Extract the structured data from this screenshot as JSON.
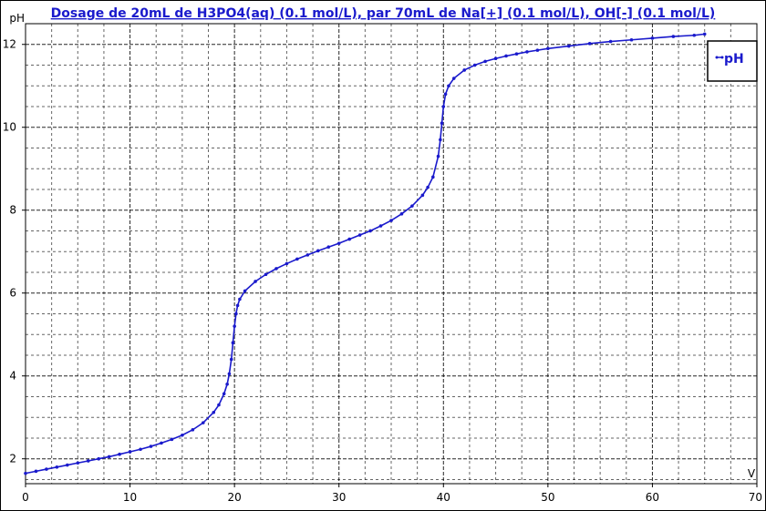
{
  "chart_data": {
    "type": "line",
    "title": "Dosage de 20mL de H3PO4(aq) (0.1 mol/L),  par 70mL  de Na[+] (0.1 mol/L), OH[-] (0.1 mol/L)",
    "xlabel": "V",
    "ylabel": "pH",
    "xlim": [
      0,
      70
    ],
    "ylim": [
      1.4,
      12.5
    ],
    "x_ticks": [
      "0",
      "10",
      "20",
      "30",
      "40",
      "50",
      "60",
      "70"
    ],
    "y_ticks": [
      "2",
      "4",
      "6",
      "8",
      "10",
      "12"
    ],
    "grid": true,
    "legend_position": "top-right",
    "series": [
      {
        "name": "pH",
        "color": "#1a1acc",
        "marker": "dot",
        "points": [
          [
            0,
            1.65
          ],
          [
            1,
            1.7
          ],
          [
            2,
            1.75
          ],
          [
            3,
            1.8
          ],
          [
            4,
            1.85
          ],
          [
            5,
            1.9
          ],
          [
            6,
            1.95
          ],
          [
            7,
            2.0
          ],
          [
            8,
            2.05
          ],
          [
            9,
            2.11
          ],
          [
            10,
            2.17
          ],
          [
            11,
            2.23
          ],
          [
            12,
            2.3
          ],
          [
            13,
            2.38
          ],
          [
            14,
            2.47
          ],
          [
            15,
            2.57
          ],
          [
            16,
            2.7
          ],
          [
            17,
            2.87
          ],
          [
            18,
            3.12
          ],
          [
            18.5,
            3.3
          ],
          [
            19,
            3.57
          ],
          [
            19.3,
            3.8
          ],
          [
            19.5,
            4.05
          ],
          [
            19.7,
            4.4
          ],
          [
            19.85,
            4.8
          ],
          [
            20,
            5.2
          ],
          [
            20.15,
            5.5
          ],
          [
            20.3,
            5.7
          ],
          [
            20.5,
            5.85
          ],
          [
            21,
            6.05
          ],
          [
            22,
            6.28
          ],
          [
            23,
            6.45
          ],
          [
            24,
            6.59
          ],
          [
            25,
            6.71
          ],
          [
            26,
            6.82
          ],
          [
            27,
            6.92
          ],
          [
            28,
            7.02
          ],
          [
            29,
            7.11
          ],
          [
            30,
            7.2
          ],
          [
            31,
            7.3
          ],
          [
            32,
            7.4
          ],
          [
            33,
            7.5
          ],
          [
            34,
            7.62
          ],
          [
            35,
            7.75
          ],
          [
            36,
            7.91
          ],
          [
            37,
            8.1
          ],
          [
            38,
            8.36
          ],
          [
            38.5,
            8.55
          ],
          [
            39,
            8.8
          ],
          [
            39.5,
            9.3
          ],
          [
            39.7,
            9.7
          ],
          [
            39.85,
            10.1
          ],
          [
            40,
            10.5
          ],
          [
            40.2,
            10.8
          ],
          [
            40.5,
            11.0
          ],
          [
            41,
            11.18
          ],
          [
            42,
            11.38
          ],
          [
            43,
            11.5
          ],
          [
            44,
            11.59
          ],
          [
            45,
            11.66
          ],
          [
            46,
            11.72
          ],
          [
            47,
            11.77
          ],
          [
            48,
            11.82
          ],
          [
            49,
            11.86
          ],
          [
            50,
            11.9
          ],
          [
            52,
            11.96
          ],
          [
            54,
            12.02
          ],
          [
            56,
            12.07
          ],
          [
            58,
            12.11
          ],
          [
            60,
            12.15
          ],
          [
            62,
            12.19
          ],
          [
            64,
            12.22
          ],
          [
            65,
            12.25
          ]
        ]
      }
    ]
  }
}
